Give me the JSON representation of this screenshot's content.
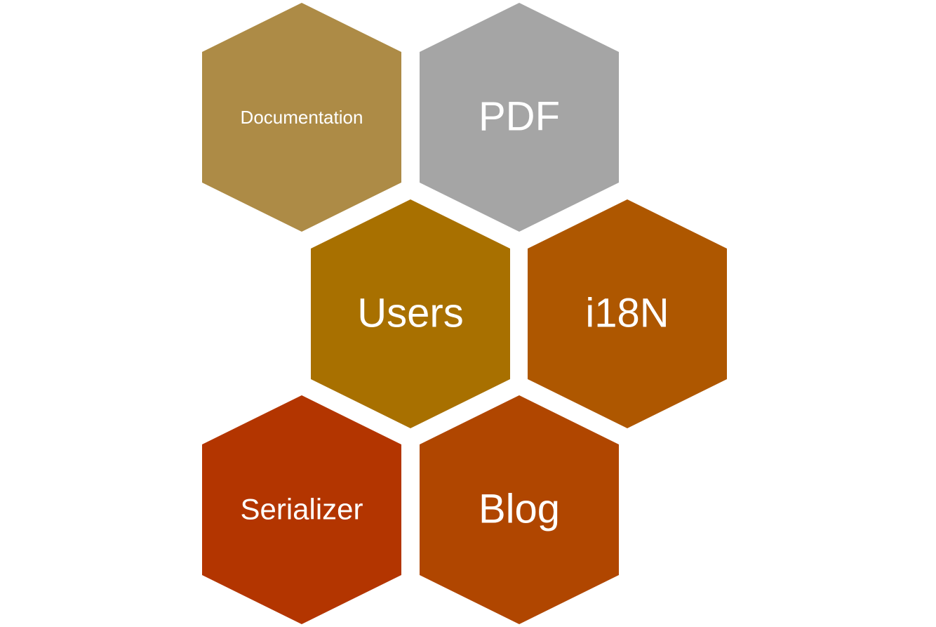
{
  "hexagons": [
    {
      "label": "Documentation",
      "color": "#AD8B46"
    },
    {
      "label": "PDF",
      "color": "#A5A5A5"
    },
    {
      "label": "Users",
      "color": "#A87000"
    },
    {
      "label": "i18N",
      "color": "#AE5700"
    },
    {
      "label": "Serializer",
      "color": "#B33500"
    },
    {
      "label": "Blog",
      "color": "#B04600"
    }
  ]
}
